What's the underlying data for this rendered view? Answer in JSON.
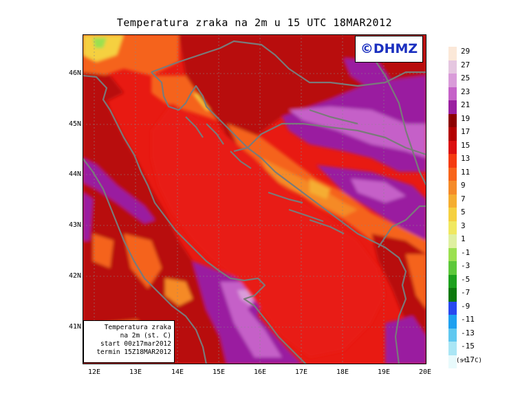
{
  "title": "Temperatura zraka na 2m u 15 UTC 18MAR2012",
  "logo": "©DHMZ",
  "info_box": {
    "line1": "Temperatura zraka",
    "line2": "na 2m (st. C)",
    "line3": "start 00z17mar2012",
    "line4": "termin 15Z18MAR2012"
  },
  "lat_labels": [
    "46N",
    "45N",
    "44N",
    "43N",
    "42N",
    "41N"
  ],
  "lon_labels": [
    "12E",
    "13E",
    "14E",
    "15E",
    "16E",
    "17E",
    "18E",
    "19E",
    "20E"
  ],
  "legend": {
    "unit": "(st. C)",
    "labels": [
      "29",
      "27",
      "25",
      "23",
      "21",
      "19",
      "17",
      "15",
      "13",
      "11",
      "9",
      "7",
      "5",
      "3",
      "1",
      "-1",
      "-3",
      "-5",
      "-7",
      "-9",
      "-11",
      "-13",
      "-15",
      "-17"
    ],
    "colors": [
      "#fbe8d8",
      "#e5c6e0",
      "#d99bd9",
      "#c561c8",
      "#9a1fa0",
      "#8c0000",
      "#b40000",
      "#dc0f0f",
      "#f53a0f",
      "#f8641a",
      "#f58a28",
      "#f5ad30",
      "#f5d040",
      "#f0e860",
      "#dff0a0",
      "#9be050",
      "#5cc83a",
      "#1ca01c",
      "#0c780c",
      "#2848f0",
      "#1ea0f0",
      "#60c8f0",
      "#aae6f5",
      "#e8fafc"
    ]
  },
  "colors": {
    "sea": "#e81a12",
    "land_dark": "#b80c0c",
    "land_hot": "#f5641e",
    "land_cool": "#9a1fa0",
    "coastline": "#7a7a7a"
  }
}
